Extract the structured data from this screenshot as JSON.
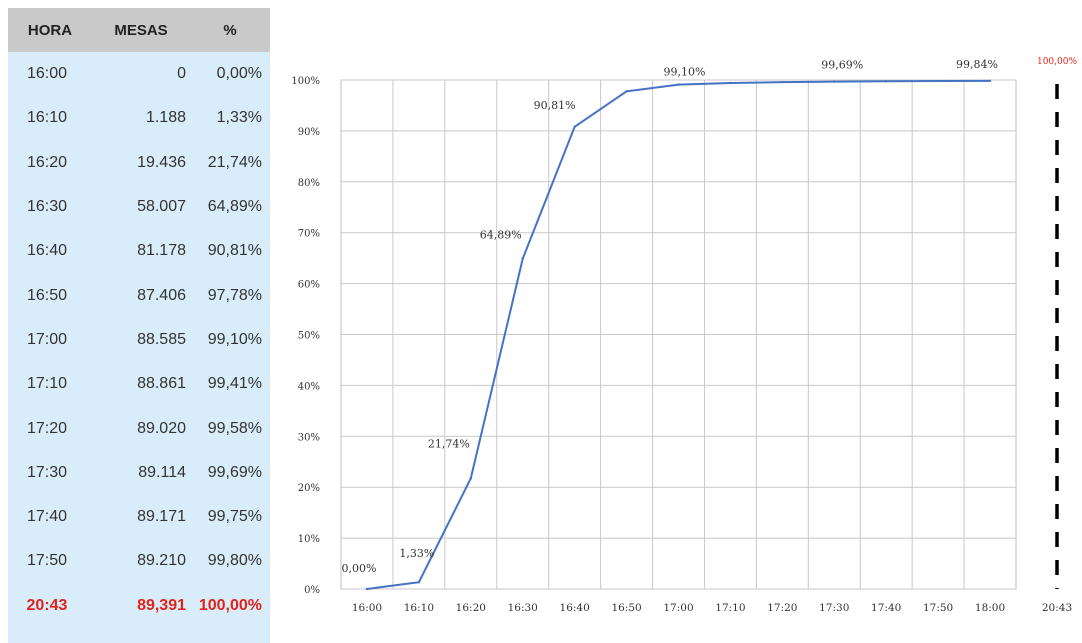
{
  "table": {
    "headers": [
      "HORA",
      "MESAS",
      "%"
    ],
    "rows": [
      {
        "hora": "16:00",
        "mesas": "0",
        "pct": "0,00%"
      },
      {
        "hora": "16:10",
        "mesas": "1.188",
        "pct": "1,33%"
      },
      {
        "hora": "16:20",
        "mesas": "19.436",
        "pct": "21,74%"
      },
      {
        "hora": "16:30",
        "mesas": "58.007",
        "pct": "64,89%"
      },
      {
        "hora": "16:40",
        "mesas": "81.178",
        "pct": "90,81%"
      },
      {
        "hora": "16:50",
        "mesas": "87.406",
        "pct": "97,78%"
      },
      {
        "hora": "17:00",
        "mesas": "88.585",
        "pct": "99,10%"
      },
      {
        "hora": "17:10",
        "mesas": "88.861",
        "pct": "99,41%"
      },
      {
        "hora": "17:20",
        "mesas": "89.020",
        "pct": "99,58%"
      },
      {
        "hora": "17:30",
        "mesas": "89.114",
        "pct": "99,69%"
      },
      {
        "hora": "17:40",
        "mesas": "89.171",
        "pct": "99,75%"
      },
      {
        "hora": "17:50",
        "mesas": "89.210",
        "pct": "99,80%"
      }
    ],
    "final_row": {
      "hora": "20:43",
      "mesas": "89,391",
      "pct": "100,00%"
    },
    "final_color": "#e0241b"
  },
  "chart_data": {
    "type": "line",
    "categories": [
      "16:00",
      "16:10",
      "16:20",
      "16:30",
      "16:40",
      "16:50",
      "17:00",
      "17:10",
      "17:20",
      "17:30",
      "17:40",
      "17:50",
      "18:00"
    ],
    "values": [
      0,
      1.33,
      21.74,
      64.89,
      90.81,
      97.78,
      99.1,
      99.41,
      99.58,
      99.69,
      99.75,
      99.8,
      99.84
    ],
    "y_ticks": [
      "0%",
      "10%",
      "20%",
      "30%",
      "40%",
      "50%",
      "60%",
      "70%",
      "80%",
      "90%",
      "100%"
    ],
    "ylim": [
      0,
      100
    ],
    "data_labels": [
      {
        "index": 0,
        "text": "0,00%"
      },
      {
        "index": 1,
        "text": "1,33%"
      },
      {
        "index": 2,
        "text": "21,74%"
      },
      {
        "index": 3,
        "text": "64,89%"
      },
      {
        "index": 4,
        "text": "90,81%"
      },
      {
        "index": 6,
        "text": "99,10%"
      },
      {
        "index": 9,
        "text": "99,69%"
      },
      {
        "index": 12,
        "text": "99,84%"
      }
    ],
    "final_marker": {
      "category": "20:43",
      "label": "100,00%",
      "color": "#e0241b",
      "style": "dashed"
    },
    "line_color": "#4472c4",
    "grid": true
  }
}
